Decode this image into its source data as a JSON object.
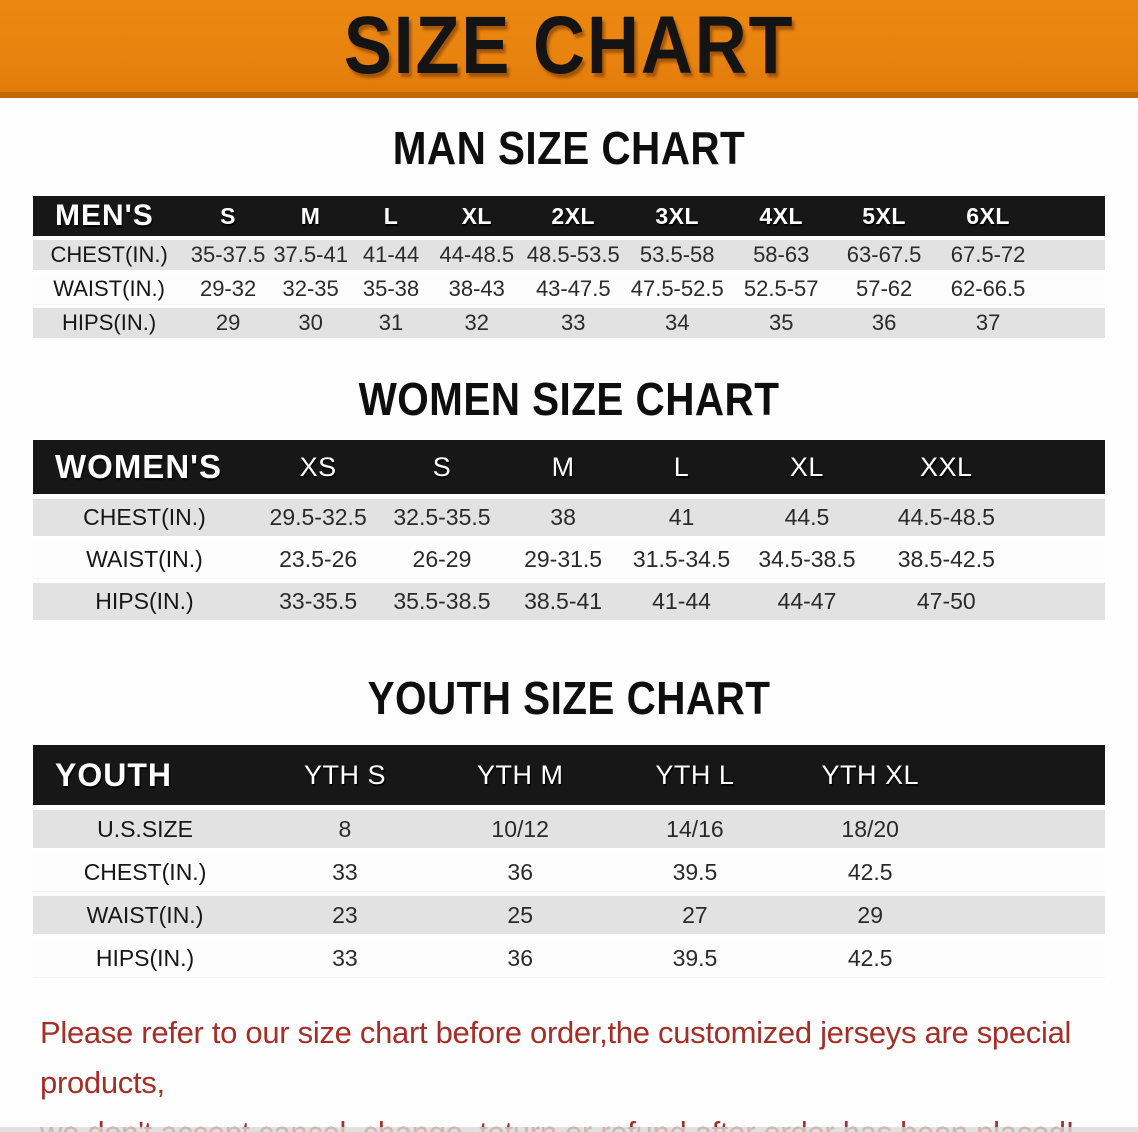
{
  "banner": {
    "title": "SIZE CHART",
    "bg_color": "#E8820E",
    "text_color": "#141414"
  },
  "sections": [
    {
      "key": "men",
      "title": "MAN SIZE CHART",
      "table": {
        "corner_label": "MEN'S",
        "columns": [
          "S",
          "M",
          "L",
          "XL",
          "2XL",
          "3XL",
          "4XL",
          "5XL",
          "6XL"
        ],
        "rows": [
          {
            "label": "CHEST(IN.)",
            "values": [
              "35-37.5",
              "37.5-41",
              "41-44",
              "44-48.5",
              "48.5-53.5",
              "53.5-58",
              "58-63",
              "63-67.5",
              "67.5-72"
            ]
          },
          {
            "label": "WAIST(IN.)",
            "values": [
              "29-32",
              "32-35",
              "35-38",
              "38-43",
              "43-47.5",
              "47.5-52.5",
              "52.5-57",
              "57-62",
              "62-66.5"
            ]
          },
          {
            "label": "HIPS(IN.)",
            "values": [
              "29",
              "30",
              "31",
              "32",
              "33",
              "34",
              "35",
              "36",
              "37"
            ]
          }
        ]
      }
    },
    {
      "key": "women",
      "title": "WOMEN SIZE CHART",
      "table": {
        "corner_label": "WOMEN'S",
        "columns": [
          "XS",
          "S",
          "M",
          "L",
          "XL",
          "XXL"
        ],
        "rows": [
          {
            "label": "CHEST(IN.)",
            "values": [
              "29.5-32.5",
              "32.5-35.5",
              "38",
              "41",
              "44.5",
              "44.5-48.5"
            ]
          },
          {
            "label": "WAIST(IN.)",
            "values": [
              "23.5-26",
              "26-29",
              "29-31.5",
              "31.5-34.5",
              "34.5-38.5",
              "38.5-42.5"
            ]
          },
          {
            "label": "HIPS(IN.)",
            "values": [
              "33-35.5",
              "35.5-38.5",
              "38.5-41",
              "41-44",
              "44-47",
              "47-50"
            ]
          }
        ]
      }
    },
    {
      "key": "youth",
      "title": "YOUTH SIZE CHART",
      "table": {
        "corner_label": "YOUTH",
        "columns": [
          "YTH S",
          "YTH M",
          "YTH L",
          "YTH XL"
        ],
        "rows": [
          {
            "label": "U.S.SIZE",
            "values": [
              "8",
              "10/12",
              "14/16",
              "18/20"
            ]
          },
          {
            "label": "CHEST(IN.)",
            "values": [
              "33",
              "36",
              "39.5",
              "42.5"
            ]
          },
          {
            "label": "WAIST(IN.)",
            "values": [
              "23",
              "25",
              "27",
              "29"
            ]
          },
          {
            "label": "HIPS(IN.)",
            "values": [
              "33",
              "36",
              "39.5",
              "42.5"
            ]
          }
        ]
      }
    }
  ],
  "disclaimer": {
    "text_color": "#A52E26",
    "line1": "Please refer to our size chart before order,the customized jerseys are special products,",
    "line2": "we don't accept cancel, change, teturn or refund after order has been placed!"
  }
}
